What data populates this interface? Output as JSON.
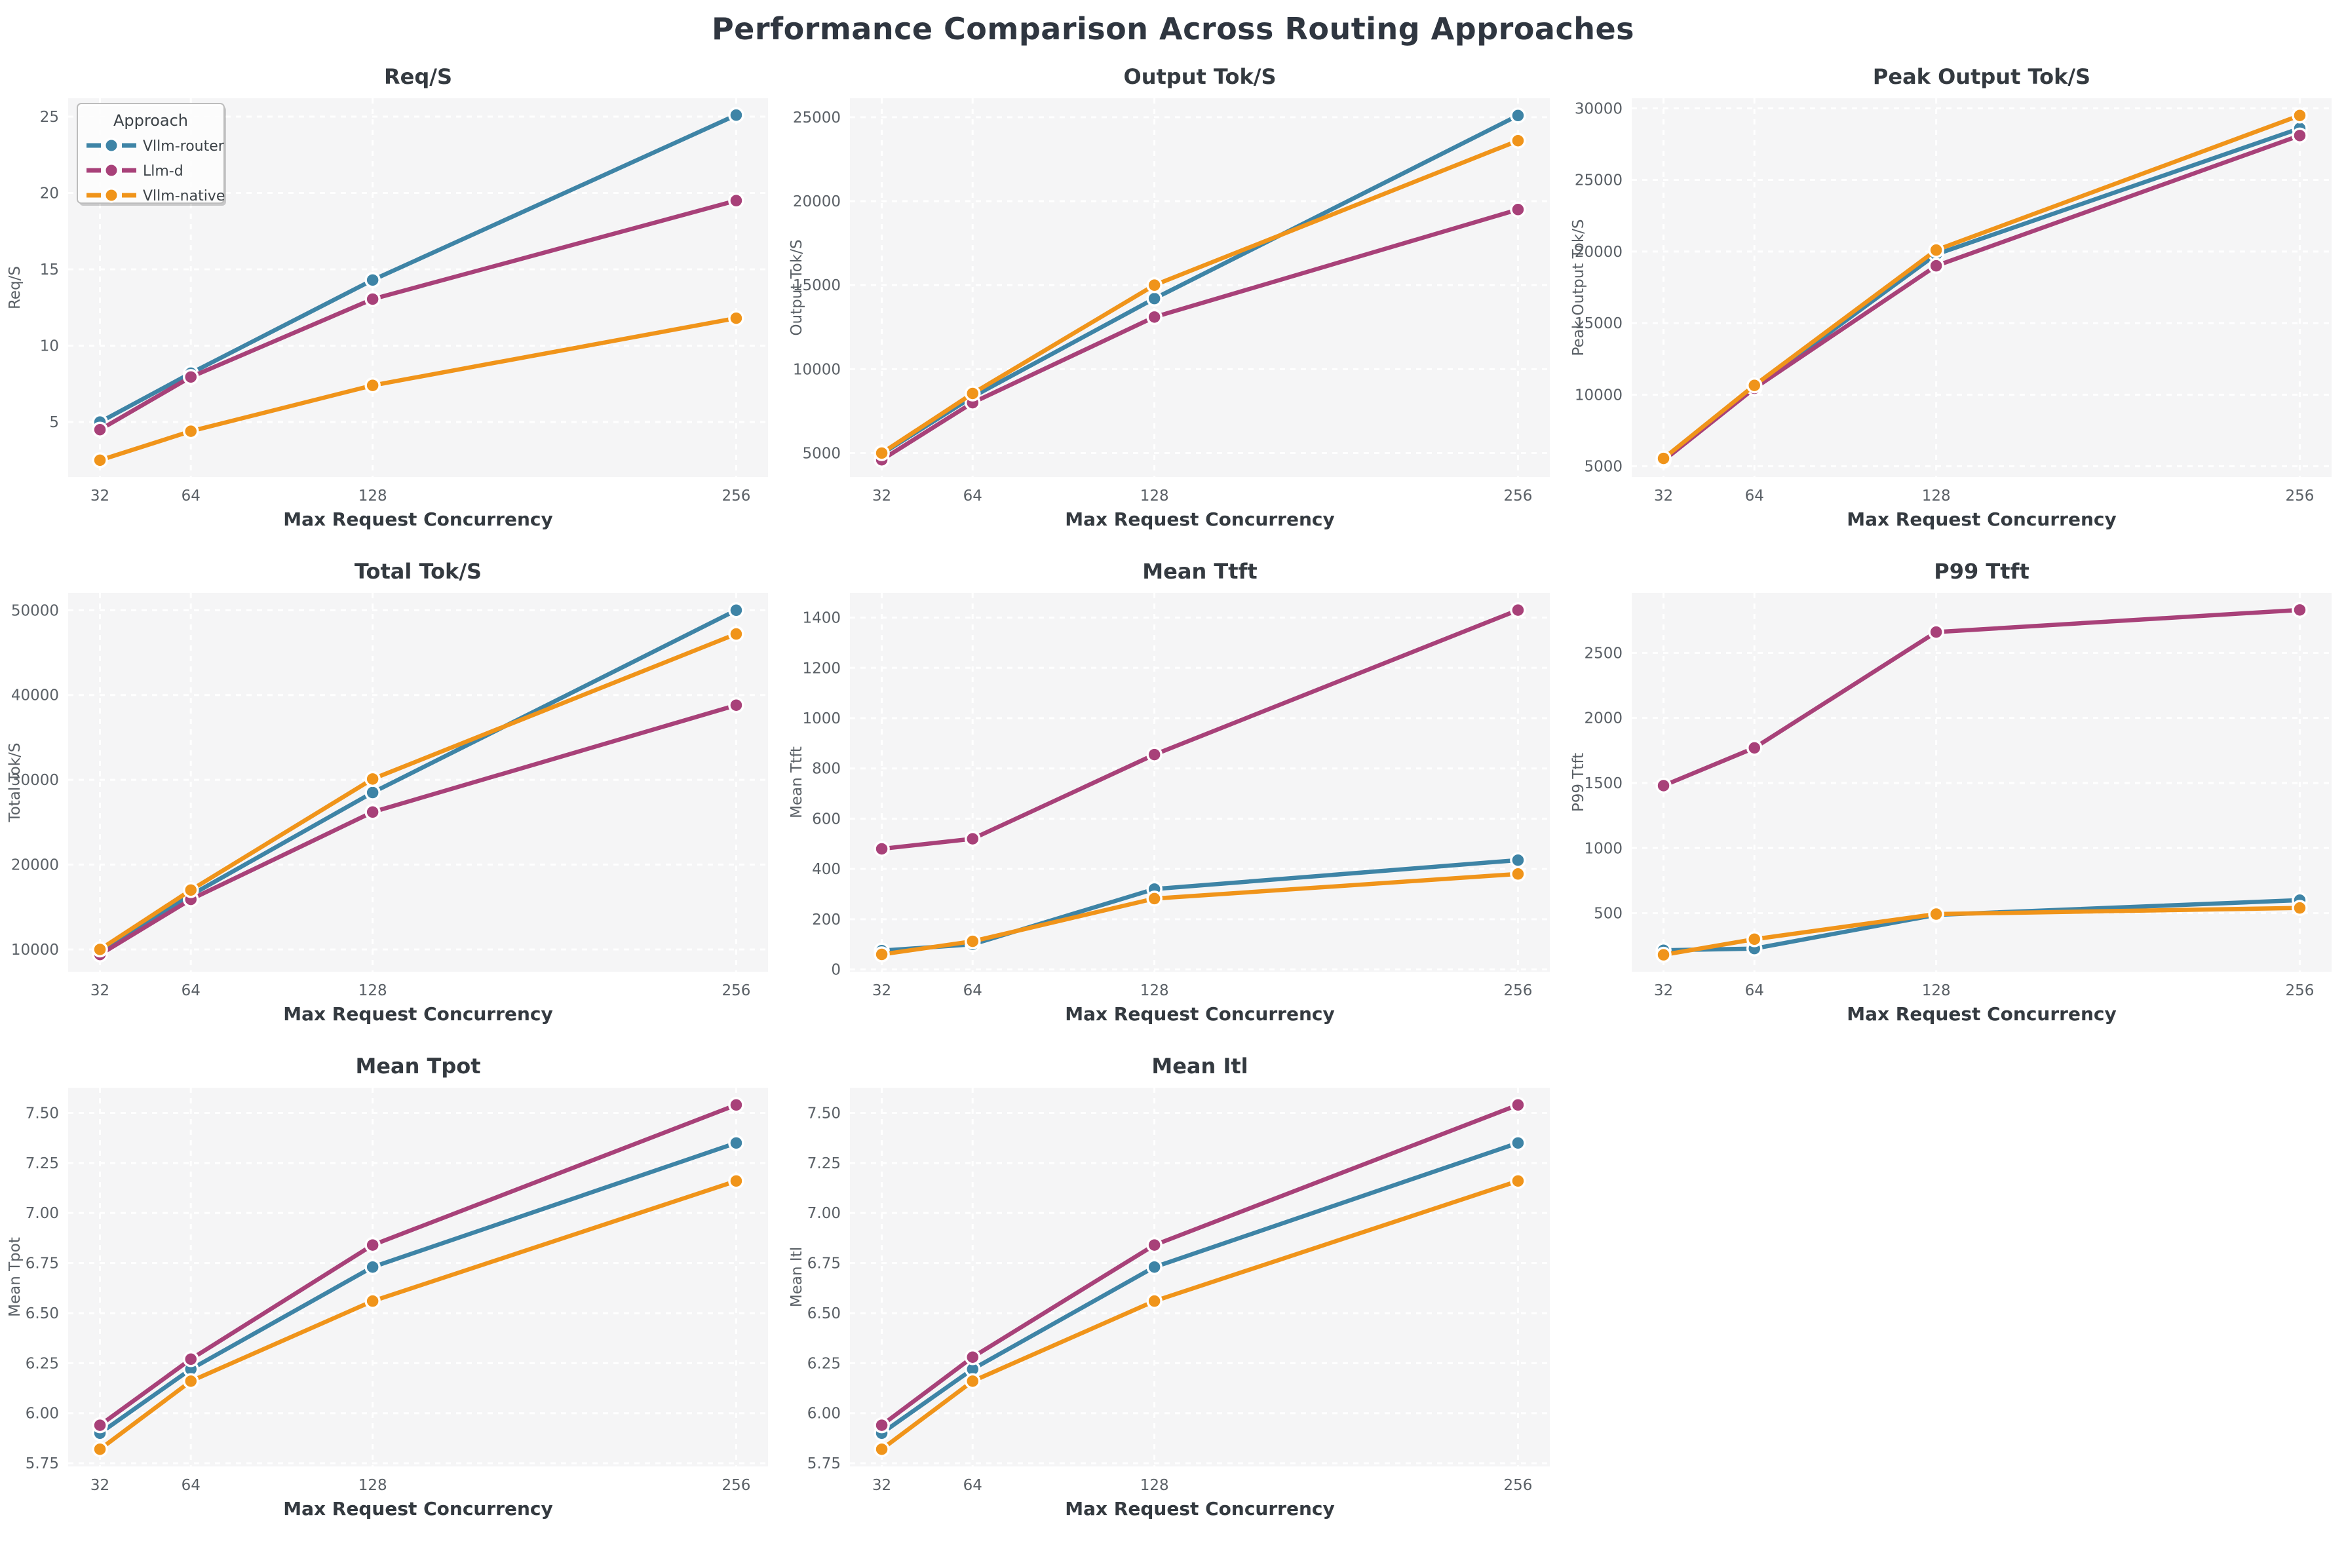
{
  "figure": {
    "title": "Performance Comparison Across Routing Approaches"
  },
  "legend": {
    "title": "Approach",
    "entries": [
      {
        "label": "Vllm-router",
        "color": "#3e84a6"
      },
      {
        "label": "Llm-d",
        "color": "#a84179"
      },
      {
        "label": "Vllm-native",
        "color": "#f0941a"
      }
    ]
  },
  "style": {
    "plot_bg": "#f5f5f6",
    "grid_color": "#ffffff",
    "page_bg": "#ffffff"
  },
  "chart_data": [
    {
      "type": "line",
      "title": "Req/S",
      "ylabel": "Req/S",
      "xlabel": "Max Request Concurrency",
      "grid": true,
      "legend": true,
      "legend_position": "upper-left",
      "x": [
        32,
        64,
        128,
        256
      ],
      "xtick_labels": [
        "32",
        "64",
        "128",
        "256"
      ],
      "xlim": [
        20.8,
        267.2
      ],
      "ylim": [
        1.4,
        26.2
      ],
      "yticks": [
        5,
        10,
        15,
        20,
        25
      ],
      "ytick_labels": [
        "5",
        "10",
        "15",
        "20",
        "25"
      ],
      "series": [
        {
          "name": "Vllm-router",
          "values": [
            5.0,
            8.2,
            14.3,
            25.1
          ]
        },
        {
          "name": "Llm-d",
          "values": [
            4.5,
            7.95,
            13.05,
            19.5
          ]
        },
        {
          "name": "Vllm-native",
          "values": [
            2.5,
            4.4,
            7.4,
            11.8
          ]
        }
      ]
    },
    {
      "type": "line",
      "title": "Output Tok/S",
      "ylabel": "Output Tok/S",
      "xlabel": "Max Request Concurrency",
      "grid": true,
      "legend": false,
      "x": [
        32,
        64,
        128,
        256
      ],
      "xtick_labels": [
        "32",
        "64",
        "128",
        "256"
      ],
      "xlim": [
        20.8,
        267.2
      ],
      "ylim": [
        3575,
        26125
      ],
      "yticks": [
        5000,
        10000,
        15000,
        20000,
        25000
      ],
      "ytick_labels": [
        "5000",
        "10000",
        "15000",
        "20000",
        "25000"
      ],
      "series": [
        {
          "name": "Vllm-router",
          "values": [
            4950,
            8350,
            14200,
            25100
          ]
        },
        {
          "name": "Llm-d",
          "values": [
            4600,
            8000,
            13100,
            19500
          ]
        },
        {
          "name": "Vllm-native",
          "values": [
            5000,
            8550,
            15000,
            23600
          ]
        }
      ]
    },
    {
      "type": "line",
      "title": "Peak Output Tok/S",
      "ylabel": "Peak Output Tok/S",
      "xlabel": "Max Request Concurrency",
      "grid": true,
      "legend": false,
      "x": [
        32,
        64,
        128,
        256
      ],
      "xtick_labels": [
        "32",
        "64",
        "128",
        "256"
      ],
      "xlim": [
        20.8,
        267.2
      ],
      "ylim": [
        4250,
        30700
      ],
      "yticks": [
        5000,
        10000,
        15000,
        20000,
        25000,
        30000
      ],
      "ytick_labels": [
        "5000",
        "10000",
        "15000",
        "20000",
        "25000",
        "30000"
      ],
      "series": [
        {
          "name": "Vllm-router",
          "values": [
            5450,
            10500,
            19800,
            28600
          ]
        },
        {
          "name": "Llm-d",
          "values": [
            5400,
            10450,
            19000,
            28100
          ]
        },
        {
          "name": "Vllm-native",
          "values": [
            5550,
            10650,
            20100,
            29500
          ]
        }
      ]
    },
    {
      "type": "line",
      "title": "Total Tok/S",
      "ylabel": "Total Tok/S",
      "xlabel": "Max Request Concurrency",
      "grid": true,
      "legend": false,
      "x": [
        32,
        64,
        128,
        256
      ],
      "xtick_labels": [
        "32",
        "64",
        "128",
        "256"
      ],
      "xlim": [
        20.8,
        267.2
      ],
      "ylim": [
        7370,
        52030
      ],
      "yticks": [
        10000,
        20000,
        30000,
        40000,
        50000
      ],
      "ytick_labels": [
        "10000",
        "20000",
        "30000",
        "40000",
        "50000"
      ],
      "series": [
        {
          "name": "Vllm-router",
          "values": [
            9900,
            16400,
            28500,
            50000
          ]
        },
        {
          "name": "Llm-d",
          "values": [
            9400,
            15900,
            26200,
            38800
          ]
        },
        {
          "name": "Vllm-native",
          "values": [
            10000,
            17000,
            30100,
            47200
          ]
        }
      ]
    },
    {
      "type": "line",
      "title": "Mean Ttft",
      "ylabel": "Mean Ttft",
      "xlabel": "Max Request Concurrency",
      "grid": true,
      "legend": false,
      "x": [
        32,
        64,
        128,
        256
      ],
      "xtick_labels": [
        "32",
        "64",
        "128",
        "256"
      ],
      "xlim": [
        20.8,
        267.2
      ],
      "ylim": [
        -9,
        1498
      ],
      "yticks": [
        0,
        200,
        400,
        600,
        800,
        1000,
        1200,
        1400
      ],
      "ytick_labels": [
        "0",
        "200",
        "400",
        "600",
        "800",
        "1000",
        "1200",
        "1400"
      ],
      "series": [
        {
          "name": "Vllm-router",
          "values": [
            75,
            100,
            320,
            435
          ]
        },
        {
          "name": "Llm-d",
          "values": [
            480,
            520,
            855,
            1430
          ]
        },
        {
          "name": "Vllm-native",
          "values": [
            60,
            112,
            282,
            380
          ]
        }
      ]
    },
    {
      "type": "line",
      "title": "P99 Ttft",
      "ylabel": "P99 Ttft",
      "xlabel": "Max Request Concurrency",
      "grid": true,
      "legend": false,
      "x": [
        32,
        64,
        128,
        256
      ],
      "xtick_labels": [
        "32",
        "64",
        "128",
        "256"
      ],
      "xlim": [
        20.8,
        267.2
      ],
      "ylim": [
        50,
        2960
      ],
      "yticks": [
        500,
        1000,
        1500,
        2000,
        2500
      ],
      "ytick_labels": [
        "500",
        "1000",
        "1500",
        "2000",
        "2500"
      ],
      "series": [
        {
          "name": "Vllm-router",
          "values": [
            215,
            228,
            487,
            600
          ]
        },
        {
          "name": "Llm-d",
          "values": [
            1480,
            1770,
            2660,
            2830
          ]
        },
        {
          "name": "Vllm-native",
          "values": [
            180,
            300,
            493,
            540
          ]
        }
      ]
    },
    {
      "type": "line",
      "title": "Mean Tpot",
      "ylabel": "Mean Tpot",
      "xlabel": "Max Request Concurrency",
      "grid": true,
      "legend": false,
      "x": [
        32,
        64,
        128,
        256
      ],
      "xtick_labels": [
        "32",
        "64",
        "128",
        "256"
      ],
      "xlim": [
        20.8,
        267.2
      ],
      "ylim": [
        5.734,
        7.626
      ],
      "yticks": [
        5.75,
        6.0,
        6.25,
        6.5,
        6.75,
        7.0,
        7.25,
        7.5
      ],
      "ytick_labels": [
        "5.75",
        "6.00",
        "6.25",
        "6.50",
        "6.75",
        "7.00",
        "7.25",
        "7.50"
      ],
      "series": [
        {
          "name": "Vllm-router",
          "values": [
            5.9,
            6.22,
            6.73,
            7.35
          ]
        },
        {
          "name": "Llm-d",
          "values": [
            5.94,
            6.27,
            6.84,
            7.54
          ]
        },
        {
          "name": "Vllm-native",
          "values": [
            5.82,
            6.16,
            6.56,
            7.16
          ]
        }
      ]
    },
    {
      "type": "line",
      "title": "Mean Itl",
      "ylabel": "Mean Itl",
      "xlabel": "Max Request Concurrency",
      "grid": true,
      "legend": false,
      "x": [
        32,
        64,
        128,
        256
      ],
      "xtick_labels": [
        "32",
        "64",
        "128",
        "256"
      ],
      "xlim": [
        20.8,
        267.2
      ],
      "ylim": [
        5.734,
        7.626
      ],
      "yticks": [
        5.75,
        6.0,
        6.25,
        6.5,
        6.75,
        7.0,
        7.25,
        7.5
      ],
      "ytick_labels": [
        "5.75",
        "6.00",
        "6.25",
        "6.50",
        "6.75",
        "7.00",
        "7.25",
        "7.50"
      ],
      "series": [
        {
          "name": "Vllm-router",
          "values": [
            5.9,
            6.22,
            6.73,
            7.35
          ]
        },
        {
          "name": "Llm-d",
          "values": [
            5.94,
            6.28,
            6.84,
            7.54
          ]
        },
        {
          "name": "Vllm-native",
          "values": [
            5.82,
            6.16,
            6.56,
            7.16
          ]
        }
      ]
    }
  ]
}
